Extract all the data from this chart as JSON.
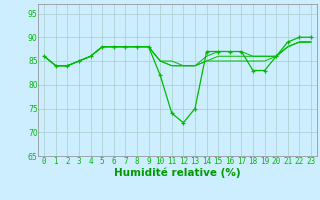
{
  "background_color": "#cceeff",
  "grid_color": "#aacccc",
  "line_color": "#00bb00",
  "xlabel": "Humidité relative (%)",
  "xlabel_color": "#009900",
  "ylim": [
    65,
    97
  ],
  "xlim": [
    -0.5,
    23.5
  ],
  "yticks": [
    65,
    70,
    75,
    80,
    85,
    90,
    95
  ],
  "xticks": [
    0,
    1,
    2,
    3,
    4,
    5,
    6,
    7,
    8,
    9,
    10,
    11,
    12,
    13,
    14,
    15,
    16,
    17,
    18,
    19,
    20,
    21,
    22,
    23
  ],
  "series": [
    {
      "x": [
        0,
        1,
        2,
        3,
        4,
        5,
        6,
        7,
        8,
        9,
        10,
        11,
        12,
        13,
        14,
        15,
        16,
        17,
        18,
        19,
        20,
        21,
        22,
        23
      ],
      "y": [
        86,
        84,
        84,
        85,
        86,
        88,
        88,
        88,
        88,
        88,
        82,
        74,
        72,
        75,
        87,
        87,
        87,
        87,
        83,
        83,
        86,
        89,
        90,
        90
      ],
      "marker": true
    },
    {
      "x": [
        0,
        1,
        2,
        3,
        4,
        5,
        6,
        7,
        8,
        9,
        10,
        11,
        12,
        13,
        14,
        15,
        16,
        17,
        18,
        19,
        20,
        21,
        22,
        23
      ],
      "y": [
        86,
        84,
        84,
        85,
        86,
        88,
        88,
        88,
        88,
        88,
        85,
        84,
        84,
        84,
        85,
        85,
        85,
        85,
        85,
        85,
        86,
        88,
        89,
        89
      ],
      "marker": false
    },
    {
      "x": [
        0,
        1,
        2,
        3,
        4,
        5,
        6,
        7,
        8,
        9,
        10,
        11,
        12,
        13,
        14,
        15,
        16,
        17,
        18,
        19,
        20,
        21,
        22,
        23
      ],
      "y": [
        86,
        84,
        84,
        85,
        86,
        88,
        88,
        88,
        88,
        88,
        85,
        84,
        84,
        84,
        85,
        86,
        86,
        86,
        86,
        86,
        86,
        88,
        89,
        89
      ],
      "marker": false
    },
    {
      "x": [
        0,
        1,
        2,
        3,
        4,
        5,
        6,
        7,
        8,
        9,
        10,
        11,
        12,
        13,
        14,
        15,
        16,
        17,
        18,
        19,
        20,
        21,
        22,
        23
      ],
      "y": [
        86,
        84,
        84,
        85,
        86,
        88,
        88,
        88,
        88,
        88,
        85,
        85,
        84,
        84,
        86,
        87,
        87,
        87,
        86,
        86,
        86,
        88,
        89,
        89
      ],
      "marker": false
    }
  ],
  "tick_fontsize": 5.5,
  "xlabel_fontsize": 7.5
}
